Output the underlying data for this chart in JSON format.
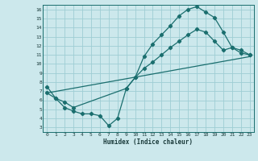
{
  "xlabel": "Humidex (Indice chaleur)",
  "bg_color": "#cce8ec",
  "grid_color": "#9ecdd4",
  "line_color": "#1a6e6e",
  "xlim": [
    -0.5,
    23.5
  ],
  "ylim": [
    2.5,
    16.5
  ],
  "xticks": [
    0,
    1,
    2,
    3,
    4,
    5,
    6,
    7,
    8,
    9,
    10,
    11,
    12,
    13,
    14,
    15,
    16,
    17,
    18,
    19,
    20,
    21,
    22,
    23
  ],
  "yticks": [
    3,
    4,
    5,
    6,
    7,
    8,
    9,
    10,
    11,
    12,
    13,
    14,
    15,
    16
  ],
  "line1_x": [
    0,
    1,
    2,
    3,
    4,
    5,
    6,
    7,
    8,
    9,
    10,
    11,
    12,
    13,
    14,
    15,
    16,
    17,
    18,
    19,
    20,
    21,
    22,
    23
  ],
  "line1_y": [
    7.5,
    6.2,
    5.2,
    4.8,
    4.5,
    4.5,
    4.3,
    3.2,
    4.0,
    7.3,
    8.5,
    10.8,
    12.2,
    13.2,
    14.2,
    15.3,
    16.0,
    16.3,
    15.7,
    15.1,
    13.5,
    11.8,
    11.2,
    11.0
  ],
  "line2_x": [
    0,
    23
  ],
  "line2_y": [
    6.8,
    10.8
  ],
  "line3_x": [
    0,
    1,
    2,
    3,
    9,
    10,
    11,
    12,
    13,
    14,
    15,
    16,
    17,
    18,
    19,
    20,
    21,
    22,
    23
  ],
  "line3_y": [
    6.8,
    6.2,
    5.8,
    5.2,
    7.3,
    8.5,
    9.5,
    10.2,
    11.0,
    11.8,
    12.5,
    13.2,
    13.8,
    13.5,
    12.5,
    11.5,
    11.8,
    11.5,
    11.0
  ]
}
